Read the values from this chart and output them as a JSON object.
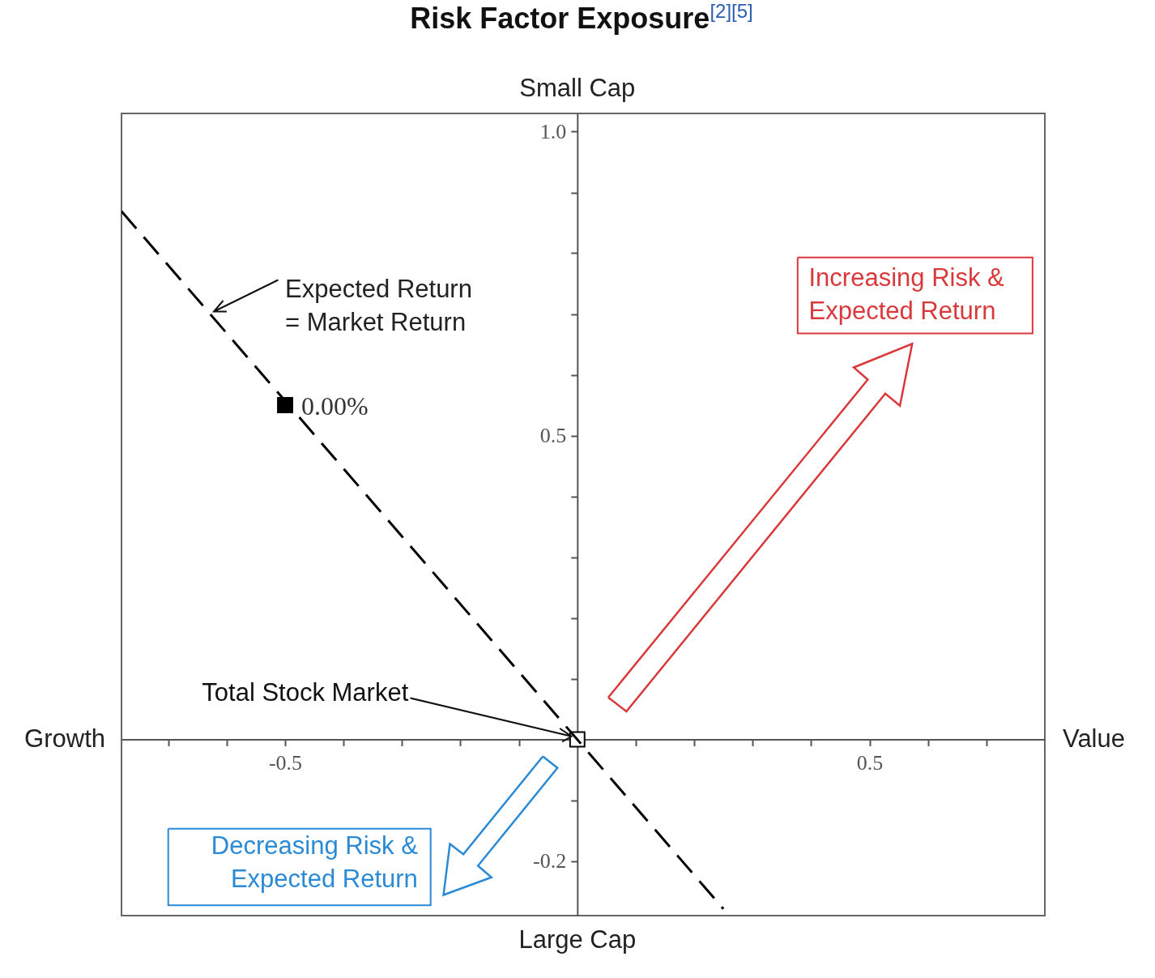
{
  "chart_data": {
    "type": "scatter",
    "title": "Risk Factor Exposure$^{[2][5]}$",
    "xlim": [
      -0.78,
      0.8
    ],
    "ylim": [
      -0.29,
      1.03
    ],
    "xticks": [
      {
        "value": -0.7,
        "label": null
      },
      {
        "value": -0.6,
        "label": null
      },
      -0.5,
      {
        "value": -0.4,
        "label": null
      },
      {
        "value": -0.3,
        "label": null
      },
      {
        "value": -0.2,
        "label": null
      },
      {
        "value": -0.1,
        "label": null
      },
      {
        "value": 0.1,
        "label": null
      },
      {
        "value": 0.2,
        "label": null
      },
      {
        "value": 0.3,
        "label": null
      },
      {
        "value": 0.4,
        "label": null
      },
      0.5,
      {
        "value": 0.6,
        "label": null
      },
      {
        "value": 0.7,
        "label": null
      }
    ],
    "yticks": [
      -0.2,
      {
        "value": -0.1,
        "label": null
      },
      {
        "value": 0.1,
        "label": null
      },
      {
        "value": 0.2,
        "label": null
      },
      {
        "value": 0.3,
        "label": null
      },
      {
        "value": 0.4,
        "label": null
      },
      0.5,
      {
        "value": 0.6,
        "label": null
      },
      {
        "value": 0.7,
        "label": null
      },
      {
        "value": 0.8,
        "label": null
      },
      {
        "value": 0.9,
        "label": null
      },
      {
        "value": 1,
        "label": "1.0"
      }
    ],
    "tick_labels": true,
    "series": [
      {
        "x": [
          -0.5,
          0
        ],
        "values": [
          0.55,
          0
        ],
        "colors": [
          "#000000",
          "#ffffff"
        ],
        "marker": "square"
      },
      {
        "type": "line",
        "x": [
          -0.78,
          0.25
        ],
        "values": [
          0.869,
          -0.279
        ],
        "color": "#000000",
        "line_style": "dashed"
      }
    ],
    "annotations": [
      "Small Cap",
      "Large Cap",
      "Growth",
      "Value",
      "Expected Return\n= Market Return",
      "Total Stock Market",
      "Increasing Risk &\nExpected Return",
      "Decreasing Risk &\nExpected Return",
      {
        "text": "0.00%",
        "x": -0.5,
        "y": 0.55
      }
    ]
  }
}
